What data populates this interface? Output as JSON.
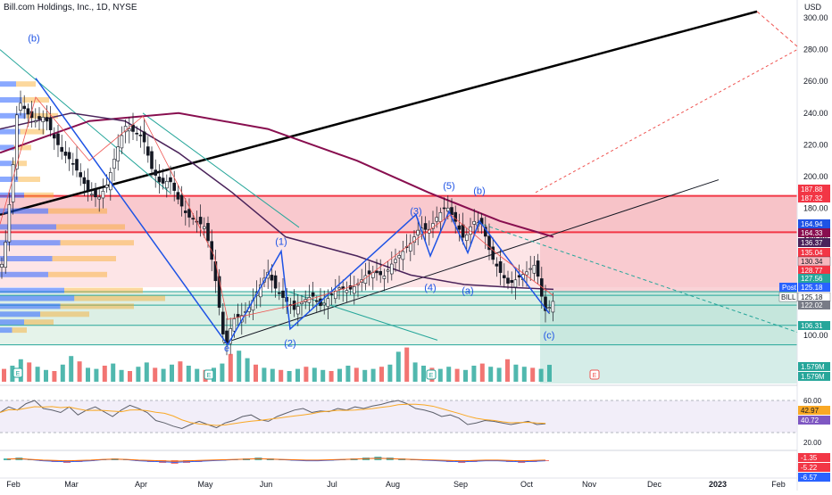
{
  "header": {
    "title": "Bill.com Holdings, Inc., 1D, NYSE",
    "currency": "USD"
  },
  "colors": {
    "up": "#26a69a",
    "down": "#ef5350",
    "sma_long": "#880e4f",
    "sma_mid": "#4a235a",
    "ema": "#ef5350",
    "wave": "#1e53e5",
    "zone_red": "#f7b7bd",
    "zone_green": "#cde8da",
    "rsi": "#7e57c2",
    "signal": "#f9a825"
  },
  "chart_data": {
    "type": "candlestick",
    "symbol": "BILL",
    "interval": "1D",
    "exchange": "NYSE",
    "x_axis": {
      "labels": [
        "Feb",
        "Mar",
        "Apr",
        "May",
        "Jun",
        "Jul",
        "Aug",
        "Sep",
        "Oct",
        "Nov",
        "Dec",
        "2023",
        "Feb"
      ]
    },
    "y_axis": {
      "ticks": [
        100,
        120,
        140,
        160,
        180,
        200,
        220,
        240,
        260,
        280,
        300
      ],
      "ylim": [
        90,
        310
      ],
      "tick_labels": [
        "100.00",
        "120.00",
        "140.00",
        "160.00",
        "180.00",
        "200.00",
        "220.00",
        "240.00",
        "260.00",
        "280.00",
        "300.00"
      ]
    },
    "price_path": [
      [
        0,
        140
      ],
      [
        5,
        152
      ],
      [
        10,
        180
      ],
      [
        15,
        210
      ],
      [
        20,
        248
      ],
      [
        25,
        245
      ],
      [
        30,
        240
      ],
      [
        40,
        235
      ],
      [
        50,
        238
      ],
      [
        60,
        225
      ],
      [
        70,
        215
      ],
      [
        80,
        210
      ],
      [
        90,
        200
      ],
      [
        100,
        190
      ],
      [
        110,
        186
      ],
      [
        120,
        195
      ],
      [
        130,
        215
      ],
      [
        140,
        232
      ],
      [
        150,
        228
      ],
      [
        160,
        225
      ],
      [
        170,
        205
      ],
      [
        180,
        195
      ],
      [
        190,
        198
      ],
      [
        200,
        185
      ],
      [
        210,
        175
      ],
      [
        220,
        172
      ],
      [
        230,
        168
      ],
      [
        240,
        140
      ],
      [
        250,
        100
      ],
      [
        255,
        94
      ],
      [
        260,
        110
      ],
      [
        270,
        112
      ],
      [
        280,
        118
      ],
      [
        290,
        130
      ],
      [
        300,
        140
      ],
      [
        310,
        128
      ],
      [
        320,
        122
      ],
      [
        330,
        116
      ],
      [
        340,
        122
      ],
      [
        350,
        125
      ],
      [
        360,
        118
      ],
      [
        370,
        125
      ],
      [
        380,
        130
      ],
      [
        390,
        128
      ],
      [
        400,
        132
      ],
      [
        410,
        138
      ],
      [
        420,
        140
      ],
      [
        430,
        137
      ],
      [
        440,
        146
      ],
      [
        450,
        152
      ],
      [
        460,
        158
      ],
      [
        470,
        168
      ],
      [
        480,
        166
      ],
      [
        490,
        175
      ],
      [
        500,
        182
      ],
      [
        510,
        172
      ],
      [
        520,
        160
      ],
      [
        530,
        172
      ],
      [
        540,
        170
      ],
      [
        550,
        150
      ],
      [
        560,
        140
      ],
      [
        570,
        132
      ],
      [
        580,
        136
      ],
      [
        590,
        140
      ],
      [
        600,
        145
      ],
      [
        610,
        115
      ],
      [
        616,
        118
      ],
      [
        620,
        122
      ]
    ],
    "volume": [
      1.2,
      1.5,
      2.1,
      1.8,
      1.4,
      1.1,
      1.0,
      1.6,
      2.4,
      1.9,
      1.3,
      1.2,
      1.5,
      1.7,
      1.1,
      1.0,
      1.4,
      1.8,
      1.3,
      1.2,
      1.6,
      1.9,
      1.5,
      1.2,
      1.1,
      1.3,
      1.7,
      2.6,
      2.9,
      2.2,
      1.6,
      1.3,
      1.2,
      1.1,
      1.0,
      1.2,
      1.4,
      1.3,
      1.1,
      1.0,
      1.2,
      1.5,
      1.3,
      1.1,
      1.2,
      1.4,
      1.6,
      2.8,
      3.2,
      1.8,
      1.5,
      1.3,
      1.2,
      1.4,
      1.2,
      1.1,
      1.5,
      1.7,
      1.4,
      1.3,
      2.1,
      1.6,
      1.4,
      1.3,
      1.2,
      1.579
    ],
    "sma_long": [
      [
        0,
        215
      ],
      [
        100,
        235
      ],
      [
        200,
        240
      ],
      [
        300,
        230
      ],
      [
        400,
        210
      ],
      [
        480,
        190
      ],
      [
        560,
        172
      ],
      [
        620,
        162
      ]
    ],
    "sma_mid": [
      [
        0,
        230
      ],
      [
        80,
        240
      ],
      [
        140,
        235
      ],
      [
        200,
        215
      ],
      [
        260,
        190
      ],
      [
        320,
        162
      ],
      [
        400,
        150
      ],
      [
        460,
        138
      ],
      [
        520,
        132
      ],
      [
        580,
        130
      ],
      [
        620,
        129
      ]
    ],
    "zones": [
      {
        "from": 164.94,
        "to": 187.88,
        "color": "red"
      },
      {
        "from": 127.56,
        "to": 164.94,
        "color": "red_light"
      },
      {
        "from": 106.31,
        "to": 127.56,
        "color": "green"
      },
      {
        "from": 90,
        "to": 106.31,
        "color": "green_light"
      }
    ],
    "price_labels": [
      {
        "value": 187.88,
        "text": "187.88",
        "bg": "#f23645"
      },
      {
        "value": 187.32,
        "text": "187.32",
        "bg": "#f23645"
      },
      {
        "value": 164.94,
        "text": "164.94",
        "bg": "#1e53e5"
      },
      {
        "value": 164.33,
        "text": "164.33",
        "bg": "#880e4f"
      },
      {
        "value": 136.37,
        "text": "136.37",
        "bg": "#4a235a"
      },
      {
        "value": 135.04,
        "text": "135.04",
        "bg": "#f23645"
      },
      {
        "value": 130.34,
        "text": "130.34",
        "bg": "#f7b7bd"
      },
      {
        "value": 128.77,
        "text": "128.77",
        "bg": "#f23645"
      },
      {
        "value": 127.56,
        "text": "127.56",
        "bg": "#26a69a"
      },
      {
        "value": 125.18,
        "text": "125.18",
        "bg": "#2962ff"
      },
      {
        "value": 125.18,
        "text": "125.18",
        "bg": "#ffffff"
      },
      {
        "value": 122.02,
        "text": "122.02",
        "bg": "#787b86"
      },
      {
        "value": 106.31,
        "text": "106.31",
        "bg": "#26a69a"
      }
    ],
    "post_tag": "Post",
    "symbol_tag": "BILL",
    "volume_labels": [
      "1.579M",
      "1.579M"
    ],
    "wave_labels": [
      {
        "text": "(b)",
        "x": 38,
        "p": 285
      },
      {
        "text": "(1)",
        "x": 315,
        "p": 157
      },
      {
        "text": "(2)",
        "x": 325,
        "p": 93
      },
      {
        "text": "(3)",
        "x": 466,
        "p": 176
      },
      {
        "text": "(5)",
        "x": 503,
        "p": 192
      },
      {
        "text": "(b)",
        "x": 537,
        "p": 189
      },
      {
        "text": "(4)",
        "x": 482,
        "p": 128
      },
      {
        "text": "(a)",
        "x": 524,
        "p": 126
      },
      {
        "text": "(c)",
        "x": 615,
        "p": 98
      },
      {
        "text": "e",
        "x": 254,
        "p": 90
      }
    ],
    "rsi": {
      "ticks": [
        "60.00",
        "20.00"
      ],
      "labels": [
        "42.97",
        "40.72"
      ],
      "values": [
        55,
        62,
        58,
        66,
        70,
        60,
        58,
        55,
        62,
        52,
        58,
        62,
        56,
        50,
        58,
        64,
        60,
        55,
        45,
        42,
        38,
        35,
        40,
        44,
        40,
        36,
        42,
        45,
        50,
        52,
        46,
        44,
        50,
        54,
        58,
        60,
        55,
        57,
        56,
        60,
        58,
        62,
        60,
        63,
        65,
        68,
        70,
        66,
        60,
        58,
        55,
        50,
        52,
        48,
        40,
        42,
        45,
        44,
        42,
        40,
        42,
        44,
        40,
        41
      ]
    },
    "macd": {
      "labels": [
        "-1.35",
        "-5.22",
        "-6.57"
      ],
      "hist": [
        2,
        3,
        1,
        -1,
        -2,
        -3,
        -2,
        -1,
        1,
        2,
        1,
        -1,
        -2,
        -3,
        -4,
        -3,
        -2,
        -1,
        0,
        1,
        2,
        3,
        2,
        1,
        0,
        -1,
        -1,
        0,
        1,
        2,
        3,
        4,
        3,
        2,
        1,
        0,
        -1,
        -2,
        -3,
        -2,
        -1,
        -1,
        -2,
        -3,
        -2,
        -1
      ]
    }
  }
}
